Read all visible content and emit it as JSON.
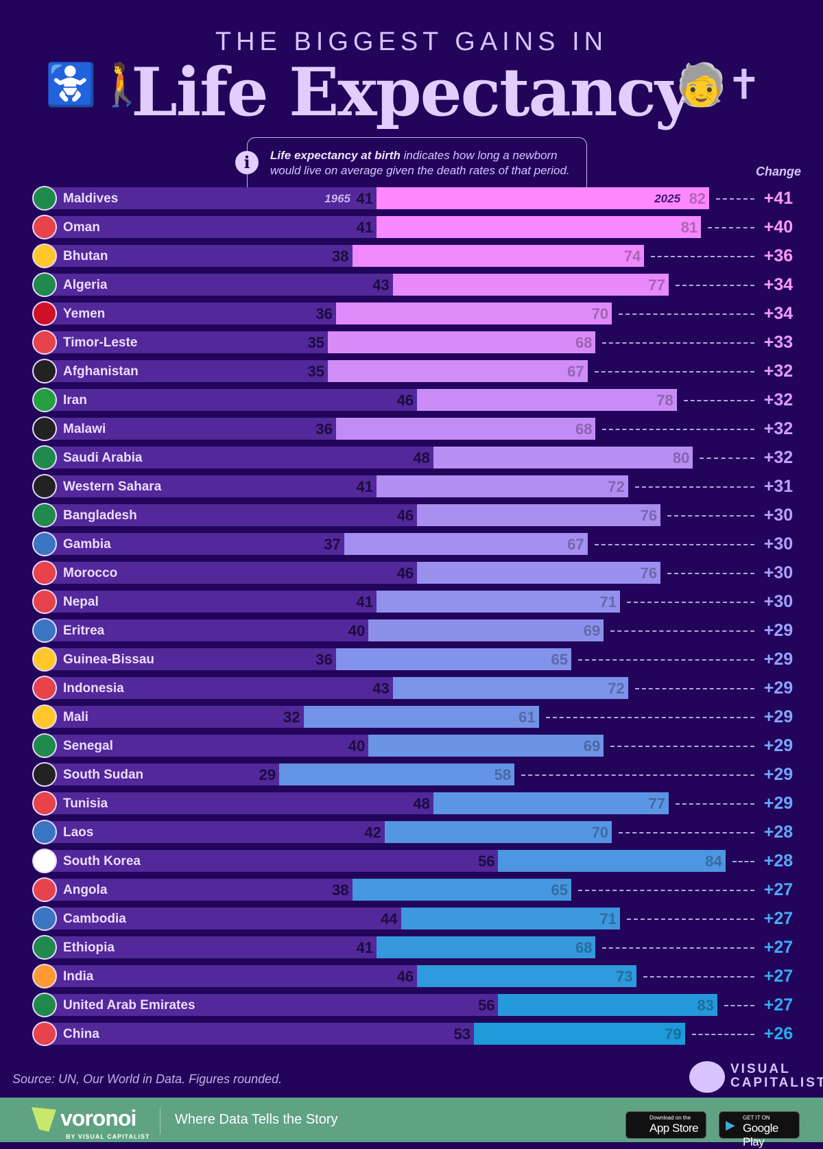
{
  "header": {
    "supertitle": "THE BIGGEST GAINS IN",
    "title": "Life Expectancy"
  },
  "info": {
    "bold": "Life expectancy at birth",
    "text": " indicates how long a newborn would live on average given the death rates of that period."
  },
  "chart_data": {
    "type": "bar",
    "subtype": "range-bar",
    "start_label": "1965",
    "end_label": "2025",
    "change_header": "Change",
    "xlim": [
      0,
      90
    ],
    "colors": {
      "start_bar": "#52289a",
      "end_top": "#ff88ff",
      "end_bottom": "#1e9ad9"
    },
    "rows": [
      {
        "country": "Maldives",
        "v1965": 41,
        "v2025": 82,
        "change": "+41"
      },
      {
        "country": "Oman",
        "v1965": 41,
        "v2025": 81,
        "change": "+40"
      },
      {
        "country": "Bhutan",
        "v1965": 38,
        "v2025": 74,
        "change": "+36"
      },
      {
        "country": "Algeria",
        "v1965": 43,
        "v2025": 77,
        "change": "+34"
      },
      {
        "country": "Yemen",
        "v1965": 36,
        "v2025": 70,
        "change": "+34"
      },
      {
        "country": "Timor-Leste",
        "v1965": 35,
        "v2025": 68,
        "change": "+33"
      },
      {
        "country": "Afghanistan",
        "v1965": 35,
        "v2025": 67,
        "change": "+32"
      },
      {
        "country": "Iran",
        "v1965": 46,
        "v2025": 78,
        "change": "+32"
      },
      {
        "country": "Malawi",
        "v1965": 36,
        "v2025": 68,
        "change": "+32"
      },
      {
        "country": "Saudi Arabia",
        "v1965": 48,
        "v2025": 80,
        "change": "+32"
      },
      {
        "country": "Western Sahara",
        "v1965": 41,
        "v2025": 72,
        "change": "+31"
      },
      {
        "country": "Bangladesh",
        "v1965": 46,
        "v2025": 76,
        "change": "+30"
      },
      {
        "country": "Gambia",
        "v1965": 37,
        "v2025": 67,
        "change": "+30"
      },
      {
        "country": "Morocco",
        "v1965": 46,
        "v2025": 76,
        "change": "+30"
      },
      {
        "country": "Nepal",
        "v1965": 41,
        "v2025": 71,
        "change": "+30"
      },
      {
        "country": "Eritrea",
        "v1965": 40,
        "v2025": 69,
        "change": "+29"
      },
      {
        "country": "Guinea-Bissau",
        "v1965": 36,
        "v2025": 65,
        "change": "+29"
      },
      {
        "country": "Indonesia",
        "v1965": 43,
        "v2025": 72,
        "change": "+29"
      },
      {
        "country": "Mali",
        "v1965": 32,
        "v2025": 61,
        "change": "+29"
      },
      {
        "country": "Senegal",
        "v1965": 40,
        "v2025": 69,
        "change": "+29"
      },
      {
        "country": "South Sudan",
        "v1965": 29,
        "v2025": 58,
        "change": "+29"
      },
      {
        "country": "Tunisia",
        "v1965": 48,
        "v2025": 77,
        "change": "+29"
      },
      {
        "country": "Laos",
        "v1965": 42,
        "v2025": 70,
        "change": "+28"
      },
      {
        "country": "South Korea",
        "v1965": 56,
        "v2025": 84,
        "change": "+28"
      },
      {
        "country": "Angola",
        "v1965": 38,
        "v2025": 65,
        "change": "+27"
      },
      {
        "country": "Cambodia",
        "v1965": 44,
        "v2025": 71,
        "change": "+27"
      },
      {
        "country": "Ethiopia",
        "v1965": 41,
        "v2025": 68,
        "change": "+27"
      },
      {
        "country": "India",
        "v1965": 46,
        "v2025": 73,
        "change": "+27"
      },
      {
        "country": "United Arab Emirates",
        "v1965": 56,
        "v2025": 83,
        "change": "+27"
      },
      {
        "country": "China",
        "v1965": 53,
        "v2025": 79,
        "change": "+26"
      }
    ]
  },
  "flag_colors": [
    "#1f8a4c",
    "#e8424b",
    "#ffc72c",
    "#1f8a4c",
    "#ce1126",
    "#e8424b",
    "#222",
    "#239f40",
    "#222",
    "#1f8a4c",
    "#222",
    "#1f8a4c",
    "#3a75c4",
    "#e8424b",
    "#e8424b",
    "#3a75c4",
    "#ffc72c",
    "#e8424b",
    "#ffc72c",
    "#1f8a4c",
    "#222",
    "#e8424b",
    "#3a75c4",
    "#fff",
    "#e8424b",
    "#3a75c4",
    "#1f8a4c",
    "#ff9933",
    "#1f8a4c",
    "#e8424b"
  ],
  "source": "Source: UN, Our World in Data. Figures rounded.",
  "brand": {
    "vc_line1": "VISUAL",
    "vc_line2": "CAPITALIST",
    "voronoi": "voronoi",
    "voronoi_by": "BY VISUAL CAPITALIST",
    "tagline": "Where Data Tells the Story",
    "appstore_small": "Download on the",
    "appstore": "App Store",
    "gplay_small": "GET IT ON",
    "gplay": "Google Play"
  }
}
